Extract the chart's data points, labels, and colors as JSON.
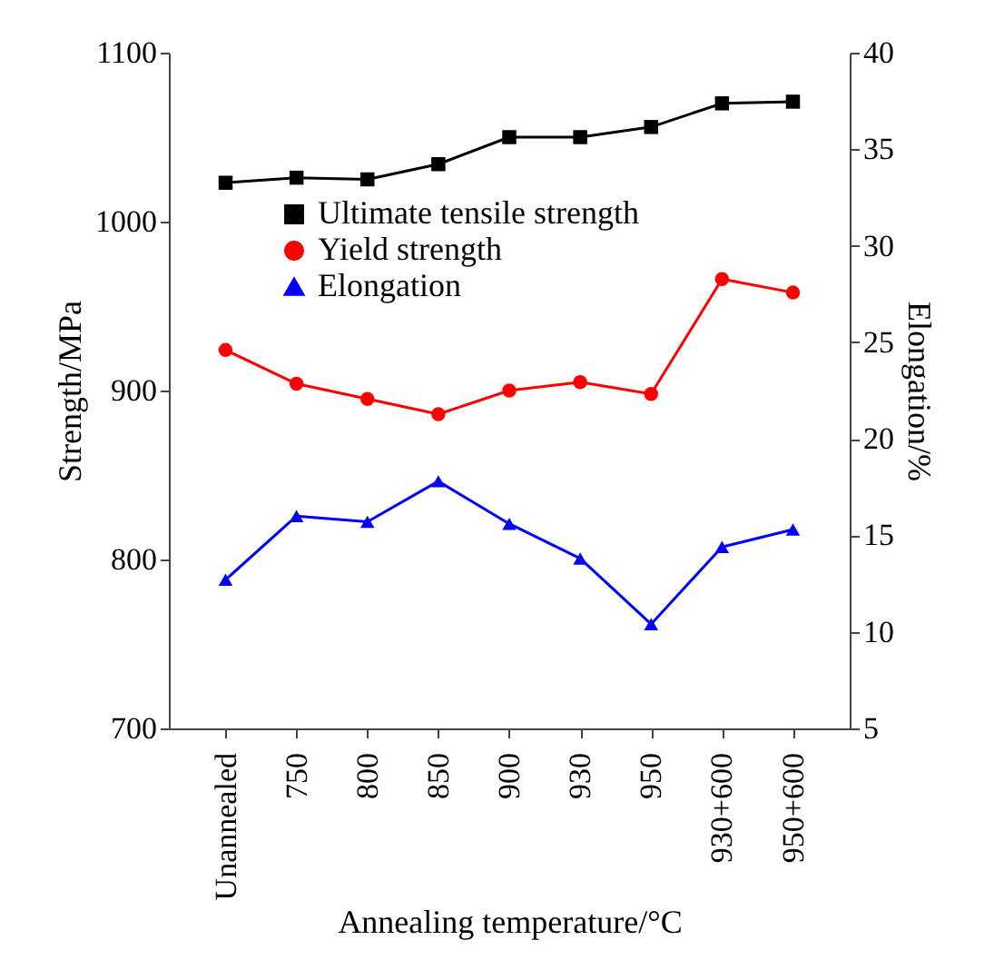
{
  "chart_data": {
    "type": "line",
    "xlabel": "Annealing temperature/°C",
    "ylabel": "Strength/MPa",
    "y2label": "Elongation/%",
    "categories": [
      "Unannealed",
      "750",
      "800",
      "850",
      "900",
      "930",
      "950",
      "930+600",
      "950+600"
    ],
    "series": [
      {
        "name": "Ultimate tensile strength",
        "color": "#000000",
        "marker": "square",
        "values": [
          1023,
          1026,
          1025,
          1034,
          1050,
          1050,
          1056,
          1070,
          1071
        ]
      },
      {
        "name": "Yield strength",
        "color": "#ff0000",
        "marker": "circle",
        "values": [
          924,
          904,
          895,
          886,
          900,
          905,
          898,
          966,
          958
        ]
      },
      {
        "name": "Elongation",
        "color": "#0000ff",
        "marker": "triangle",
        "axis": "y2",
        "values": [
          12.7,
          16.0,
          15.7,
          17.8,
          15.6,
          13.8,
          10.4,
          14.4,
          15.3
        ]
      }
    ],
    "ylim": [
      700,
      1100
    ],
    "yticks": [
      700,
      800,
      900,
      1000,
      1100
    ],
    "y2lim": [
      5,
      40
    ],
    "y2ticks": [
      5,
      10,
      15,
      20,
      25,
      30,
      35,
      40
    ],
    "grid": false,
    "legend": "top left",
    "line_style": "solid"
  }
}
